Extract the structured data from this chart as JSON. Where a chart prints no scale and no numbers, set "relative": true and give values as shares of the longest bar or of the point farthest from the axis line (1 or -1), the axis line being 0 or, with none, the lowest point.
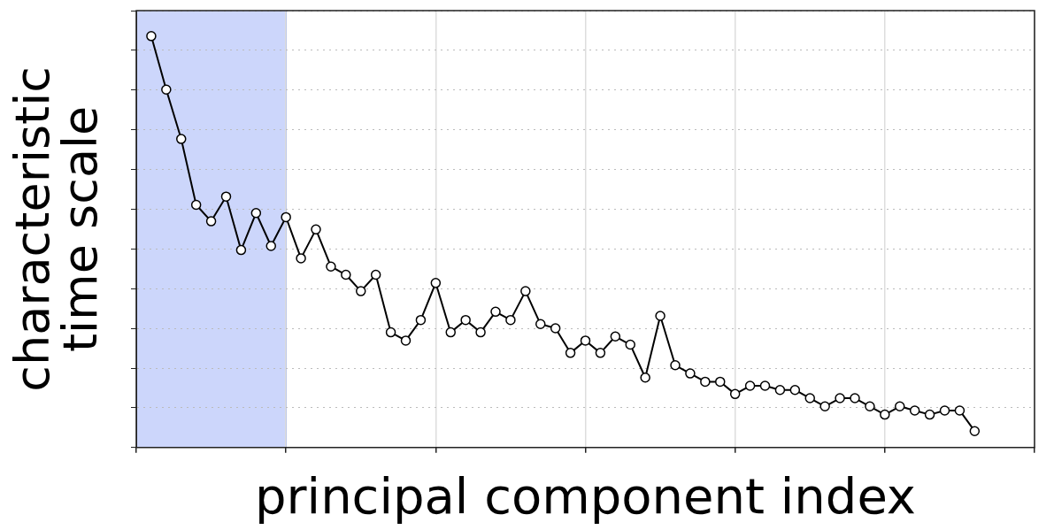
{
  "chart_data": {
    "type": "line",
    "xlabel": "principal component index",
    "ylabel": "characteristic time scale",
    "relative": true,
    "categories": [
      null,
      null,
      null,
      null,
      null,
      null,
      null,
      null,
      null,
      null,
      null,
      null,
      null,
      null,
      null,
      null,
      null,
      null,
      null,
      null,
      null,
      null,
      null,
      null,
      null,
      null,
      null,
      null,
      null,
      null,
      null,
      null,
      null,
      null,
      null,
      null,
      null,
      null,
      null,
      null,
      null,
      null,
      null,
      null,
      null,
      null,
      null,
      null,
      null,
      null,
      null,
      null,
      null,
      null,
      null,
      null
    ],
    "series": [
      {
        "color": "#000000",
        "values": [
          1,
          0.87,
          0.75,
          0.59,
          0.55,
          0.61,
          0.48,
          0.57,
          0.49,
          0.56,
          0.46,
          0.53,
          0.44,
          0.42,
          0.38,
          0.42,
          0.28,
          0.26,
          0.31,
          0.4,
          0.28,
          0.31,
          0.28,
          0.33,
          0.31,
          0.38,
          0.3,
          0.29,
          0.23,
          0.26,
          0.23,
          0.27,
          0.25,
          0.17,
          0.32,
          0.2,
          0.18,
          0.16,
          0.16,
          0.13,
          0.15,
          0.15,
          0.14,
          0.14,
          0.12,
          0.1,
          0.12,
          0.12,
          0.1,
          0.08,
          0.1,
          0.09,
          0.08,
          0.09,
          0.09,
          0.04
        ]
      }
    ],
    "grid": true,
    "marker": "circle",
    "line_style": "solid"
  }
}
